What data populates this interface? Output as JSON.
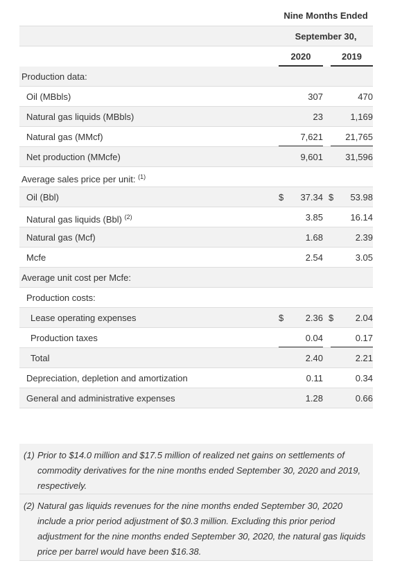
{
  "header": {
    "period": "Nine Months Ended",
    "date": "September 30,",
    "years": [
      "2020",
      "2019"
    ]
  },
  "table": {
    "rows": [
      {
        "label": "Production data:"
      },
      {
        "label": "Oil (MBbls)",
        "v2020": "307",
        "v2019": "470"
      },
      {
        "label": "Natural gas liquids (MBbls)",
        "v2020": "23",
        "v2019": "1,169"
      },
      {
        "label": "Natural gas (MMcf)",
        "v2020": "7,621",
        "v2019": "21,765"
      },
      {
        "label": "Net production (MMcfe)",
        "v2020": "9,601",
        "v2019": "31,596"
      },
      {
        "label": "Average sales price per unit:",
        "note": "(1)"
      },
      {
        "label": "Oil (Bbl)",
        "cur2020": "$",
        "v2020": "37.34",
        "cur2019": "$",
        "v2019": "53.98"
      },
      {
        "label": "Natural gas liquids (Bbl)",
        "note": "(2)",
        "v2020": "3.85",
        "v2019": "16.14"
      },
      {
        "label": "Natural gas (Mcf)",
        "v2020": "1.68",
        "v2019": "2.39"
      },
      {
        "label": "Mcfe",
        "v2020": "2.54",
        "v2019": "3.05"
      },
      {
        "label": "Average unit cost per Mcfe:"
      },
      {
        "label": "Production costs:"
      },
      {
        "label": "Lease operating expenses",
        "cur2020": "$",
        "v2020": "2.36",
        "cur2019": "$",
        "v2019": "2.04"
      },
      {
        "label": "Production taxes",
        "v2020": "0.04",
        "v2019": "0.17"
      },
      {
        "label": "Total",
        "v2020": "2.40",
        "v2019": "2.21"
      },
      {
        "label": "Depreciation, depletion and amortization",
        "v2020": "0.11",
        "v2019": "0.34"
      },
      {
        "label": "General and administrative expenses",
        "v2020": "1.28",
        "v2019": "0.66"
      }
    ]
  },
  "footnotes": [
    {
      "marker": "(1)",
      "text": "Prior to $14.0 million and $17.5 million of realized net gains on settlements of commodity derivatives for the nine months ended September 30, 2020 and 2019, respectively."
    },
    {
      "marker": "(2)",
      "text": "Natural gas liquids revenues for the nine months ended September 30, 2020 include a prior period adjustment of $0.3 million. Excluding this prior period adjustment for the nine months ended September 30, 2020, the natural gas liquids price per barrel would have been $16.38."
    }
  ]
}
